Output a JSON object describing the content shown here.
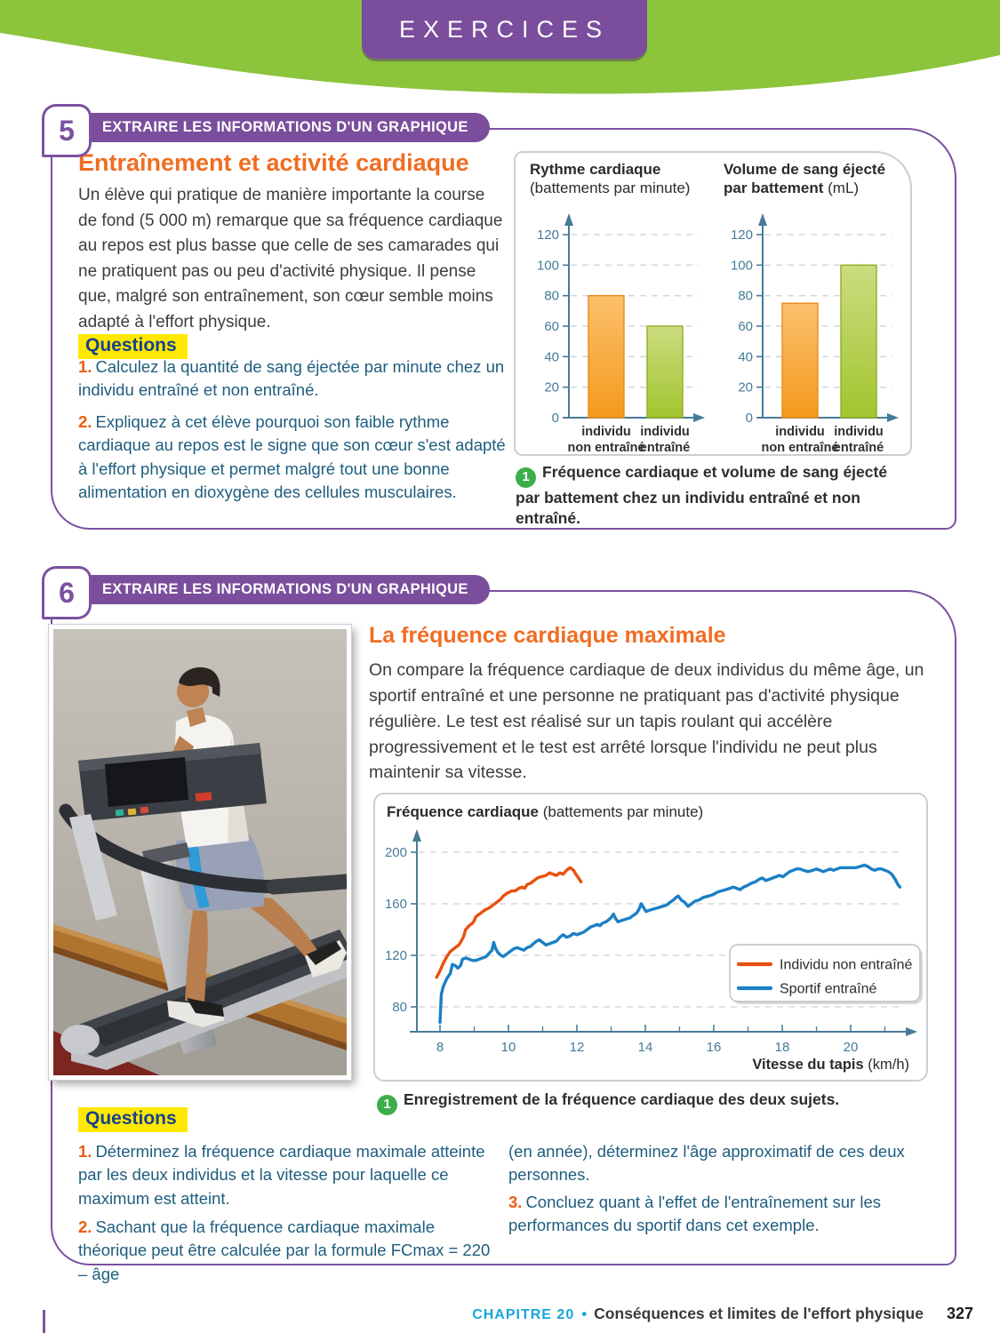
{
  "header": {
    "tab": "EXERCICES"
  },
  "footer": {
    "chapter": "CHAPITRE 20",
    "bullet": "•",
    "title": "Conséquences et limites de l'effort physique",
    "page": "327"
  },
  "colors": {
    "purple": "#7b51a0",
    "green_band": "#8cc43c",
    "orange_heading": "#f06d22",
    "question_text": "#1e5d7e",
    "question_number": "#ea5b0c",
    "highlight_yellow": "#ffe900",
    "questions_blue": "#16418f",
    "footer_cyan": "#18a6da",
    "axis_blue": "#467b98",
    "bar_orange": "#f49a1d",
    "bar_green": "#a2c52e",
    "line_orange": "#e8500f",
    "line_blue": "#1b7fc4",
    "caption_green": "#3cae4a"
  },
  "ex5": {
    "number": "5",
    "banner": "EXTRAIRE LES INFORMATIONS D'UN GRAPHIQUE",
    "title": "Entraînement et activité cardiaque",
    "body": "Un élève qui pratique de manière importante la course de fond (5 000 m) remarque que sa fréquence cardiaque au repos est plus basse que celle de ses camarades qui ne pratiquent pas ou peu d'activité physique. Il pense que, malgré son entraînement, son cœur semble moins adapté à l'effort physique.",
    "questions_label": "Questions",
    "questions": [
      {
        "num": "1.",
        "text": "Calculez la quantité de sang éjectée par minute chez un individu entraîné et non entraîné."
      },
      {
        "num": "2.",
        "text": "Expliquez à cet élève pourquoi son faible rythme cardiaque au repos est le signe que son cœur s'est adapté à l'effort physique et permet malgré tout une bonne alimentation en dioxygène des cellules musculaires."
      }
    ],
    "figure_caption_num": "1",
    "figure_caption": "Fréquence cardiaque et volume de sang éjecté par battement chez un individu entraîné et non entraîné."
  },
  "ex6": {
    "number": "6",
    "banner": "EXTRAIRE LES INFORMATIONS D'UN GRAPHIQUE",
    "title": "La fréquence cardiaque maximale",
    "body": "On compare la fréquence cardiaque de deux individus du même âge, un sportif entraîné et une personne ne pratiquant pas d'activité physique régulière. Le test est réalisé sur un tapis roulant qui accélère progressivement et le test est arrêté lorsque l'individu ne peut plus maintenir sa vitesse.",
    "figure_caption_num": "1",
    "figure_caption": "Enregistrement de la fréquence cardiaque des deux sujets.",
    "questions_label": "Questions",
    "col1": [
      {
        "num": "1.",
        "text": "Déterminez la fréquence cardiaque maximale atteinte par les deux individus et la vitesse pour laquelle ce maximum est atteint."
      },
      {
        "num": "2.",
        "text": "Sachant que la fréquence cardiaque maximale théorique peut être calculée par la formule FCmax = 220 – âge"
      }
    ],
    "col2": [
      {
        "num": "",
        "text": "(en année), déterminez l'âge approximatif de ces deux personnes."
      },
      {
        "num": "3.",
        "text": "Concluez quant à l'effet de l'entraînement sur les performances du sportif dans cet exemple."
      }
    ]
  },
  "chart_data": [
    {
      "type": "bar",
      "title_lines": [
        [
          {
            "t": "Rythme cardiaque",
            "b": 1
          }
        ],
        [
          {
            "t": "(battements par minute)",
            "b": 0
          }
        ]
      ],
      "categories": [
        "individu|non entraîné",
        "individu|entraîné"
      ],
      "values": [
        80,
        60
      ],
      "ylim": [
        0,
        120
      ],
      "yticks": [
        0,
        20,
        40,
        60,
        80,
        100,
        120
      ],
      "grid": "dashed",
      "bar_styles": [
        {
          "top": "#fbc06c",
          "bottom": "#f49a1d",
          "stroke": "#e88c17"
        },
        {
          "top": "#cbdc80",
          "bottom": "#a2c52e",
          "stroke": "#8fae23"
        }
      ]
    },
    {
      "type": "bar",
      "title_lines": [
        [
          {
            "t": "Volume de sang éjecté",
            "b": 1
          }
        ],
        [
          {
            "t": "par battement ",
            "b": 1
          },
          {
            "t": "(mL)",
            "b": 0
          }
        ]
      ],
      "categories": [
        "individu|non entraîné",
        "individu|entraîné"
      ],
      "values": [
        75,
        100
      ],
      "ylim": [
        0,
        120
      ],
      "yticks": [
        0,
        20,
        40,
        60,
        80,
        100,
        120
      ],
      "grid": "dashed",
      "bar_styles": [
        {
          "top": "#fbc06c",
          "bottom": "#f49a1d",
          "stroke": "#e88c17"
        },
        {
          "top": "#cbdc80",
          "bottom": "#a2c52e",
          "stroke": "#8fae23"
        }
      ]
    },
    {
      "type": "line",
      "title_parts": [
        {
          "t": "Fréquence cardiaque ",
          "b": 1
        },
        {
          "t": "(battements par minute)",
          "b": 0
        }
      ],
      "xlabel_parts": [
        {
          "t": "Vitesse du tapis ",
          "b": 1
        },
        {
          "t": "(km/h)",
          "b": 0
        }
      ],
      "xlim": [
        7.4,
        21.9
      ],
      "ylim": [
        60,
        205
      ],
      "yticks": [
        80,
        120,
        160,
        200
      ],
      "xticks_major": [
        8,
        10,
        12,
        14,
        16,
        18,
        20
      ],
      "xticks_minor": [
        9,
        11,
        13,
        15,
        17,
        19,
        21
      ],
      "grid": "dashed",
      "legend_position": "lower-right",
      "series": [
        {
          "name": "Individu non entraîné",
          "color": "#e8500f",
          "points": [
            [
              7.9,
              103
            ],
            [
              8.0,
              108
            ],
            [
              8.1,
              114
            ],
            [
              8.2,
              119
            ],
            [
              8.3,
              123
            ],
            [
              8.45,
              126
            ],
            [
              8.55,
              128
            ],
            [
              8.62,
              131
            ],
            [
              8.68,
              134
            ],
            [
              8.75,
              140
            ],
            [
              8.85,
              143
            ],
            [
              8.95,
              145
            ],
            [
              9.0,
              147
            ],
            [
              9.05,
              150
            ],
            [
              9.15,
              152
            ],
            [
              9.3,
              155
            ],
            [
              9.45,
              157
            ],
            [
              9.55,
              159
            ],
            [
              9.65,
              161
            ],
            [
              9.75,
              163
            ],
            [
              9.85,
              166
            ],
            [
              9.95,
              168
            ],
            [
              10.1,
              170
            ],
            [
              10.2,
              170
            ],
            [
              10.3,
              172
            ],
            [
              10.4,
              173
            ],
            [
              10.47,
              172
            ],
            [
              10.55,
              175
            ],
            [
              10.65,
              176
            ],
            [
              10.75,
              178
            ],
            [
              10.85,
              180
            ],
            [
              10.95,
              181
            ],
            [
              11.1,
              182
            ],
            [
              11.2,
              184
            ],
            [
              11.3,
              183
            ],
            [
              11.4,
              182
            ],
            [
              11.5,
              184
            ],
            [
              11.6,
              183
            ],
            [
              11.7,
              186
            ],
            [
              11.8,
              188
            ],
            [
              11.9,
              186
            ],
            [
              11.97,
              183
            ],
            [
              12.05,
              180
            ],
            [
              12.12,
              177
            ]
          ]
        },
        {
          "name": "Sportif entraîné",
          "color": "#1b7fc4",
          "points": [
            [
              8.0,
              68
            ],
            [
              8.04,
              90
            ],
            [
              8.1,
              96
            ],
            [
              8.2,
              102
            ],
            [
              8.3,
              106
            ],
            [
              8.36,
              113
            ],
            [
              8.45,
              112
            ],
            [
              8.52,
              110
            ],
            [
              8.6,
              112
            ],
            [
              8.66,
              117
            ],
            [
              8.75,
              118
            ],
            [
              8.85,
              117
            ],
            [
              8.95,
              116
            ],
            [
              9.05,
              116
            ],
            [
              9.15,
              117
            ],
            [
              9.25,
              118
            ],
            [
              9.35,
              119
            ],
            [
              9.45,
              122
            ],
            [
              9.52,
              124
            ],
            [
              9.57,
              130
            ],
            [
              9.63,
              125
            ],
            [
              9.7,
              122
            ],
            [
              9.78,
              120
            ],
            [
              9.85,
              119
            ],
            [
              9.95,
              121
            ],
            [
              10.05,
              123
            ],
            [
              10.15,
              125
            ],
            [
              10.25,
              126
            ],
            [
              10.35,
              125
            ],
            [
              10.45,
              124
            ],
            [
              10.55,
              126
            ],
            [
              10.65,
              127
            ],
            [
              10.73,
              129
            ],
            [
              10.82,
              131
            ],
            [
              10.9,
              132
            ],
            [
              11.0,
              130
            ],
            [
              11.1,
              128
            ],
            [
              11.2,
              129
            ],
            [
              11.3,
              130
            ],
            [
              11.4,
              131
            ],
            [
              11.5,
              134
            ],
            [
              11.6,
              136
            ],
            [
              11.7,
              134
            ],
            [
              11.8,
              135
            ],
            [
              11.9,
              137
            ],
            [
              12.0,
              136
            ],
            [
              12.1,
              137
            ],
            [
              12.2,
              138
            ],
            [
              12.3,
              140
            ],
            [
              12.4,
              142
            ],
            [
              12.5,
              143
            ],
            [
              12.6,
              144
            ],
            [
              12.67,
              143
            ],
            [
              12.75,
              145
            ],
            [
              12.85,
              146
            ],
            [
              12.95,
              148
            ],
            [
              13.02,
              150
            ],
            [
              13.07,
              152
            ],
            [
              13.12,
              149
            ],
            [
              13.2,
              146
            ],
            [
              13.3,
              147
            ],
            [
              13.42,
              148
            ],
            [
              13.55,
              149
            ],
            [
              13.65,
              151
            ],
            [
              13.75,
              153
            ],
            [
              13.82,
              156
            ],
            [
              13.88,
              160
            ],
            [
              13.95,
              157
            ],
            [
              14.02,
              154
            ],
            [
              14.12,
              155
            ],
            [
              14.25,
              156
            ],
            [
              14.38,
              157
            ],
            [
              14.5,
              158
            ],
            [
              14.62,
              159
            ],
            [
              14.72,
              161
            ],
            [
              14.82,
              163
            ],
            [
              14.9,
              165
            ],
            [
              14.96,
              166
            ],
            [
              15.05,
              163
            ],
            [
              15.15,
              161
            ],
            [
              15.25,
              158
            ],
            [
              15.35,
              160
            ],
            [
              15.45,
              162
            ],
            [
              15.57,
              163
            ],
            [
              15.7,
              165
            ],
            [
              15.85,
              166
            ],
            [
              15.97,
              167
            ],
            [
              16.1,
              169
            ],
            [
              16.22,
              170
            ],
            [
              16.35,
              171
            ],
            [
              16.47,
              172
            ],
            [
              16.57,
              173
            ],
            [
              16.67,
              172
            ],
            [
              16.77,
              171
            ],
            [
              16.87,
              173
            ],
            [
              16.97,
              174
            ],
            [
              17.1,
              176
            ],
            [
              17.22,
              177
            ],
            [
              17.32,
              179
            ],
            [
              17.42,
              180
            ],
            [
              17.52,
              178
            ],
            [
              17.62,
              179
            ],
            [
              17.72,
              180
            ],
            [
              17.82,
              181
            ],
            [
              17.92,
              182
            ],
            [
              18.02,
              181
            ],
            [
              18.12,
              183
            ],
            [
              18.22,
              185
            ],
            [
              18.32,
              186
            ],
            [
              18.42,
              187
            ],
            [
              18.52,
              187
            ],
            [
              18.62,
              186
            ],
            [
              18.75,
              185
            ],
            [
              18.9,
              186
            ],
            [
              19.0,
              187
            ],
            [
              19.1,
              186
            ],
            [
              19.2,
              185
            ],
            [
              19.3,
              186
            ],
            [
              19.4,
              187
            ],
            [
              19.5,
              186
            ],
            [
              19.6,
              187
            ],
            [
              19.7,
              188
            ],
            [
              19.85,
              188
            ],
            [
              20.0,
              188
            ],
            [
              20.15,
              188
            ],
            [
              20.28,
              189
            ],
            [
              20.4,
              190
            ],
            [
              20.5,
              189
            ],
            [
              20.6,
              187
            ],
            [
              20.7,
              186
            ],
            [
              20.8,
              187
            ],
            [
              20.9,
              187
            ],
            [
              21.0,
              186
            ],
            [
              21.1,
              185
            ],
            [
              21.2,
              183
            ],
            [
              21.3,
              179
            ],
            [
              21.38,
              175
            ],
            [
              21.44,
              173
            ]
          ]
        }
      ]
    }
  ]
}
